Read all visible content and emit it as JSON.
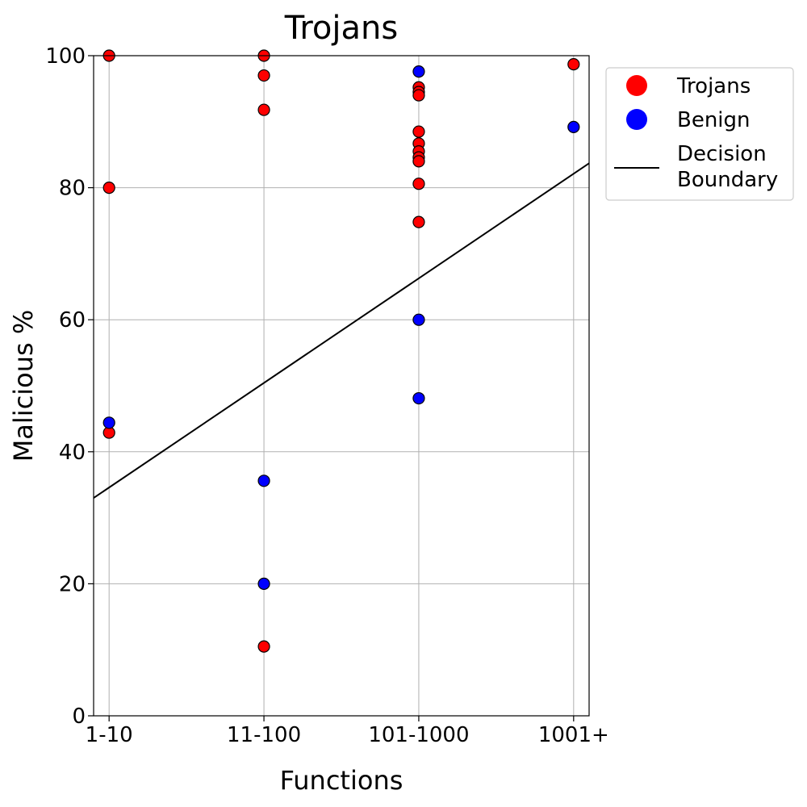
{
  "chart_data": {
    "type": "scatter",
    "title": "Trojans",
    "xlabel": "Functions",
    "ylabel": "Malicious %",
    "categories": [
      "1-10",
      "11-100",
      "101-1000",
      "1001+"
    ],
    "xlim": [
      -0.1,
      3.1
    ],
    "ylim": [
      0,
      100
    ],
    "yticks": [
      0,
      20,
      40,
      60,
      80,
      100
    ],
    "grid": true,
    "legend_position": "outside-top-right",
    "colors": {
      "trojans": "#ff0000",
      "benign": "#0000ff",
      "boundary": "#000000",
      "grid": "#b0b0b0"
    },
    "series": [
      {
        "name": "Trojans",
        "color": "#ff0000",
        "points": [
          {
            "x": 0,
            "y": 100
          },
          {
            "x": 0,
            "y": 80
          },
          {
            "x": 0,
            "y": 42.9
          },
          {
            "x": 1,
            "y": 100
          },
          {
            "x": 1,
            "y": 97
          },
          {
            "x": 1,
            "y": 91.8
          },
          {
            "x": 1,
            "y": 10.5
          },
          {
            "x": 2,
            "y": 95.2
          },
          {
            "x": 2,
            "y": 94.5
          },
          {
            "x": 2,
            "y": 94
          },
          {
            "x": 2,
            "y": 88.5
          },
          {
            "x": 2,
            "y": 86.7
          },
          {
            "x": 2,
            "y": 85.5
          },
          {
            "x": 2,
            "y": 84.6
          },
          {
            "x": 2,
            "y": 84
          },
          {
            "x": 2,
            "y": 80.6
          },
          {
            "x": 2,
            "y": 74.8
          },
          {
            "x": 3,
            "y": 98.7
          }
        ]
      },
      {
        "name": "Benign",
        "color": "#0000ff",
        "points": [
          {
            "x": 0,
            "y": 44.4
          },
          {
            "x": 1,
            "y": 35.6
          },
          {
            "x": 1,
            "y": 20
          },
          {
            "x": 2,
            "y": 97.6
          },
          {
            "x": 2,
            "y": 60
          },
          {
            "x": 2,
            "y": 48.1
          },
          {
            "x": 3,
            "y": 89.2
          }
        ]
      }
    ],
    "decision_boundary": {
      "name": "Decision Boundary",
      "label_lines": [
        "Decision",
        "Boundary"
      ],
      "color": "#000000",
      "points": [
        {
          "x": -0.1,
          "y": 33
        },
        {
          "x": 3.1,
          "y": 83.7
        }
      ]
    }
  }
}
